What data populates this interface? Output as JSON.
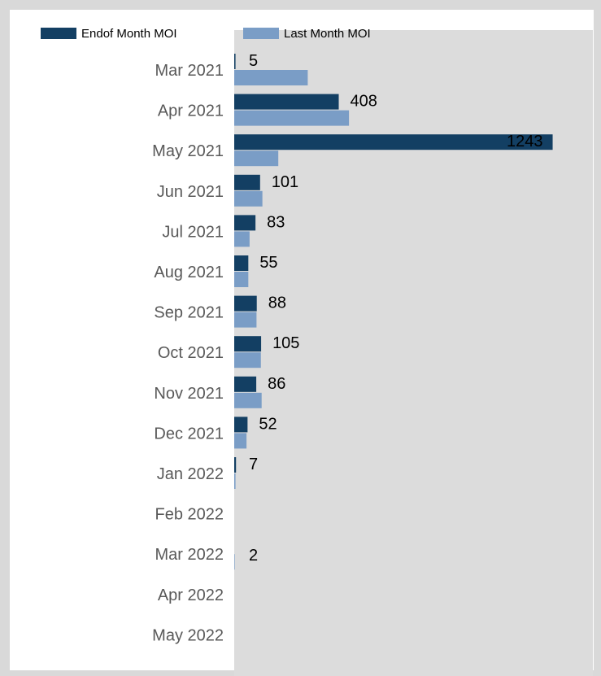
{
  "chart_data": {
    "type": "bar",
    "orientation": "horizontal",
    "categories": [
      "Mar 2021",
      "Apr 2021",
      "May 2021",
      "Jun 2021",
      "Jul 2021",
      "Aug 2021",
      "Sep 2021",
      "Oct 2021",
      "Nov 2021",
      "Dec 2021",
      "Jan 2022",
      "Feb 2022",
      "Mar 2022",
      "Apr 2022",
      "May 2022"
    ],
    "series": [
      {
        "name": "Endof Month MOI",
        "color": "#133f63",
        "values": [
          5,
          408,
          1243,
          101,
          83,
          55,
          88,
          105,
          86,
          52,
          7,
          0,
          0,
          0,
          0
        ],
        "labels": [
          "5",
          "408",
          "1243",
          "101",
          "83",
          "55",
          "88",
          "105",
          "86",
          "52",
          "7",
          "",
          "",
          "",
          ""
        ]
      },
      {
        "name": "Last Month MOI",
        "color": "#7a9dc6",
        "values": [
          287,
          448,
          172,
          110,
          60,
          55,
          87,
          104,
          107,
          48,
          5,
          0,
          2,
          0,
          0
        ],
        "labels": [
          "",
          "",
          "",
          "",
          "",
          "",
          "",
          "",
          "",
          "",
          "",
          "",
          "2",
          "",
          ""
        ]
      }
    ],
    "xlim": [
      0,
      1400
    ],
    "legend_position": "top-left",
    "grid": false,
    "data_labels": true
  }
}
